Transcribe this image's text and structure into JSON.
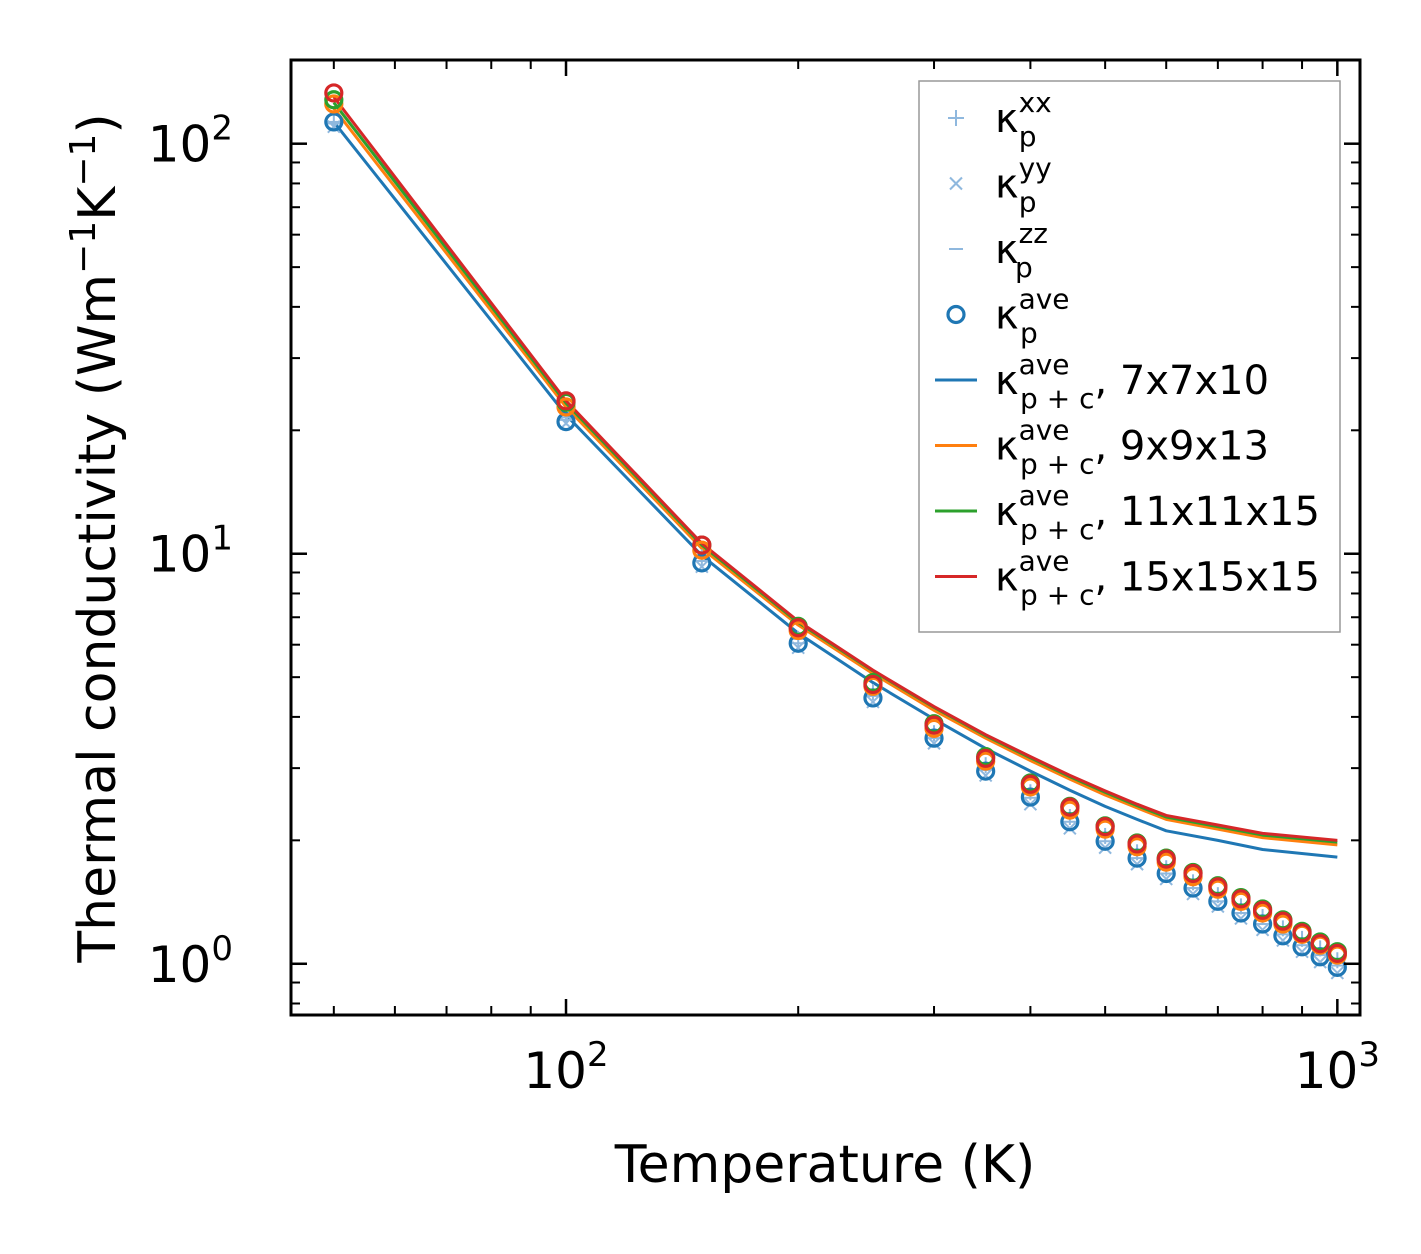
{
  "chart_data": {
    "type": "line",
    "xscale": "log",
    "yscale": "log",
    "xlabel": "Temperature (K)",
    "ylabel": "Thermal conductivity (Wm⁻¹K⁻¹)",
    "ylabel_parts": {
      "base": "Thermal conductivity (Wm",
      "sup1": "−1",
      "mid": "K",
      "sup2": "−1",
      "end": ")"
    },
    "xlim": [
      44,
      1070
    ],
    "ylim": [
      0.75,
      160
    ],
    "xticks": [
      {
        "base": "10",
        "exp": "2",
        "value": 100
      },
      {
        "base": "10",
        "exp": "3",
        "value": 1000
      }
    ],
    "yticks": [
      {
        "base": "10",
        "exp": "0",
        "value": 1
      },
      {
        "base": "10",
        "exp": "1",
        "value": 10
      },
      {
        "base": "10",
        "exp": "2",
        "value": 100
      }
    ],
    "temperatures": [
      50,
      100,
      150,
      200,
      250,
      300,
      350,
      400,
      450,
      500,
      550,
      600,
      650,
      700,
      750,
      800,
      850,
      900,
      950,
      1000
    ],
    "series": [
      {
        "name": "κ_p^xx",
        "marker": "plus",
        "color": "#8fb8de",
        "values": [
          112,
          21.5,
          9.8,
          6.2,
          4.6,
          3.65,
          3.05,
          2.62,
          2.28,
          2.05,
          1.87,
          1.71,
          1.58,
          1.47,
          1.38,
          1.3,
          1.22,
          1.15,
          1.09,
          1.02
        ]
      },
      {
        "name": "κ_p^yy",
        "marker": "x",
        "color": "#8fb8de",
        "values": [
          110,
          20.8,
          9.3,
          5.9,
          4.35,
          3.45,
          2.88,
          2.45,
          2.14,
          1.92,
          1.75,
          1.61,
          1.48,
          1.38,
          1.29,
          1.21,
          1.14,
          1.07,
          1.01,
          0.95
        ]
      },
      {
        "name": "κ_p^zz",
        "marker": "dash",
        "color": "#8fb8de",
        "values": [
          113,
          21.2,
          9.6,
          6.05,
          4.5,
          3.55,
          2.97,
          2.54,
          2.22,
          1.99,
          1.81,
          1.66,
          1.53,
          1.42,
          1.33,
          1.25,
          1.18,
          1.11,
          1.05,
          0.99
        ]
      },
      {
        "name": "κ_p^ave (7x7x10)",
        "marker": "circle",
        "color": "#1f77b4",
        "values": [
          113,
          21,
          9.5,
          6.05,
          4.45,
          3.55,
          2.95,
          2.55,
          2.22,
          1.99,
          1.81,
          1.66,
          1.53,
          1.42,
          1.33,
          1.25,
          1.17,
          1.1,
          1.04,
          0.98
        ]
      },
      {
        "name": "κ_p^ave (9x9x13)",
        "marker": "circle",
        "color": "#ff7f0e",
        "values": [
          125,
          22.8,
          10.2,
          6.5,
          4.75,
          3.75,
          3.12,
          2.7,
          2.37,
          2.13,
          1.93,
          1.77,
          1.63,
          1.52,
          1.42,
          1.33,
          1.25,
          1.18,
          1.11,
          1.05
        ]
      },
      {
        "name": "κ_p^ave (11x11x15)",
        "marker": "circle",
        "color": "#2ca02c",
        "values": [
          128,
          23.4,
          10.5,
          6.65,
          4.85,
          3.85,
          3.2,
          2.76,
          2.42,
          2.17,
          1.97,
          1.81,
          1.67,
          1.55,
          1.45,
          1.36,
          1.28,
          1.2,
          1.13,
          1.07
        ]
      },
      {
        "name": "κ_p^ave (15x15x15)",
        "marker": "circle",
        "color": "#d62728",
        "values": [
          133,
          23.6,
          10.5,
          6.6,
          4.8,
          3.82,
          3.17,
          2.74,
          2.41,
          2.16,
          1.96,
          1.8,
          1.66,
          1.54,
          1.44,
          1.35,
          1.27,
          1.19,
          1.12,
          1.06
        ]
      },
      {
        "name": "κ_p+c^ave, 7x7x10",
        "marker": "line",
        "color": "#1f77b4",
        "values": [
          113,
          21.8,
          9.9,
          6.4,
          4.85,
          3.95,
          3.35,
          2.95,
          2.65,
          2.42,
          2.25,
          2.11,
          2.0,
          1.9,
          1.82
        ]
      },
      {
        "name": "κ_p+c^ave, 9x9x13",
        "marker": "line",
        "color": "#ff7f0e",
        "values": [
          122,
          22.8,
          10.3,
          6.7,
          5.1,
          4.15,
          3.55,
          3.13,
          2.82,
          2.58,
          2.4,
          2.25,
          2.13,
          2.03,
          1.95
        ]
      },
      {
        "name": "κ_p+c^ave, 11x11x15",
        "marker": "line",
        "color": "#2ca02c",
        "values": [
          126,
          23.3,
          10.5,
          6.8,
          5.18,
          4.22,
          3.6,
          3.18,
          2.86,
          2.62,
          2.43,
          2.28,
          2.16,
          2.06,
          1.98
        ]
      },
      {
        "name": "κ_p+c^ave, 15x15x15",
        "marker": "line",
        "color": "#d62728",
        "values": [
          130,
          23.6,
          10.6,
          6.85,
          5.2,
          4.24,
          3.62,
          3.2,
          2.88,
          2.64,
          2.45,
          2.3,
          2.18,
          2.08,
          2.0
        ]
      }
    ],
    "line_temperatures": [
      50,
      100,
      150,
      200,
      250,
      300,
      350,
      400,
      450,
      500,
      550,
      600,
      700,
      800,
      1000
    ],
    "legend": {
      "position": "upper-right",
      "entries": [
        {
          "symbol": "plus",
          "color": "#8fb8de",
          "base": "κ",
          "sup": "xx",
          "sub": "p",
          "suffix": ""
        },
        {
          "symbol": "x",
          "color": "#8fb8de",
          "base": "κ",
          "sup": "yy",
          "sub": "p",
          "suffix": ""
        },
        {
          "symbol": "dash",
          "color": "#8fb8de",
          "base": "κ",
          "sup": "zz",
          "sub": "p",
          "suffix": ""
        },
        {
          "symbol": "circle",
          "color": "#1f77b4",
          "base": "κ",
          "sup": "ave",
          "sub": "p",
          "suffix": ""
        },
        {
          "symbol": "line",
          "color": "#1f77b4",
          "base": "κ",
          "sup": "ave",
          "sub": "p + c",
          "suffix": ", 7x7x10"
        },
        {
          "symbol": "line",
          "color": "#ff7f0e",
          "base": "κ",
          "sup": "ave",
          "sub": "p + c",
          "suffix": ", 9x9x13"
        },
        {
          "symbol": "line",
          "color": "#2ca02c",
          "base": "κ",
          "sup": "ave",
          "sub": "p + c",
          "suffix": ", 11x11x15"
        },
        {
          "symbol": "line",
          "color": "#d62728",
          "base": "κ",
          "sup": "ave",
          "sub": "p + c",
          "suffix": ", 15x15x15"
        }
      ]
    }
  }
}
